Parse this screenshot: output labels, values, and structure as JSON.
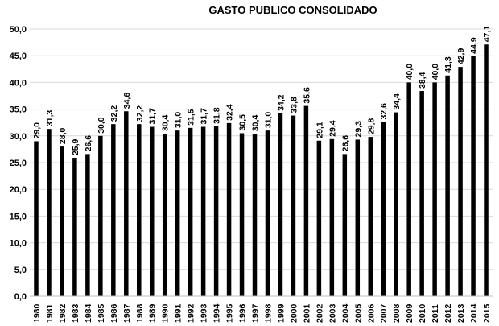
{
  "chart_data": {
    "type": "bar",
    "title": "GASTO PUBLICO CONSOLIDADO",
    "xlabel": "",
    "ylabel": "",
    "ylim": [
      0,
      50
    ],
    "yticks": [
      "0,0",
      "5,0",
      "10,0",
      "15,0",
      "20,0",
      "25,0",
      "30,0",
      "35,0",
      "40,0",
      "45,0",
      "50,0"
    ],
    "grid": true,
    "legend": "none",
    "bar_color": "#000000",
    "categories": [
      "1980",
      "1981",
      "1982",
      "1983",
      "1984",
      "1985",
      "1986",
      "1987",
      "1988",
      "1989",
      "1990",
      "1991",
      "1992",
      "1993",
      "1994",
      "1995",
      "1996",
      "1997",
      "1998",
      "1999",
      "2000",
      "2001",
      "2002",
      "2003",
      "2004",
      "2005",
      "2006",
      "2007",
      "2008",
      "2009",
      "2010",
      "2011",
      "2012",
      "2013",
      "2014",
      "2015"
    ],
    "values": [
      29.0,
      31.3,
      28.0,
      25.9,
      26.6,
      30.0,
      32.2,
      34.6,
      32.2,
      31.7,
      30.4,
      31.0,
      31.5,
      31.7,
      31.8,
      32.4,
      30.5,
      30.4,
      31.0,
      34.2,
      33.8,
      35.6,
      29.1,
      29.4,
      26.6,
      29.3,
      29.8,
      32.6,
      34.4,
      40.0,
      38.4,
      40.0,
      41.3,
      42.9,
      44.9,
      47.1
    ],
    "data_labels": [
      "29,0",
      "31,3",
      "28,0",
      "25,9",
      "26,6",
      "30,0",
      "32,2",
      "34,6",
      "32,2",
      "31,7",
      "30,4",
      "31,0",
      "31,5",
      "31,7",
      "31,8",
      "32,4",
      "30,5",
      "30,4",
      "31,0",
      "34,2",
      "33,8",
      "35,6",
      "29,1",
      "29,4",
      "26,6",
      "29,3",
      "29,8",
      "32,6",
      "34,4",
      "40,0",
      "38,4",
      "40,0",
      "41,3",
      "42,9",
      "44,9",
      "47,1"
    ]
  }
}
